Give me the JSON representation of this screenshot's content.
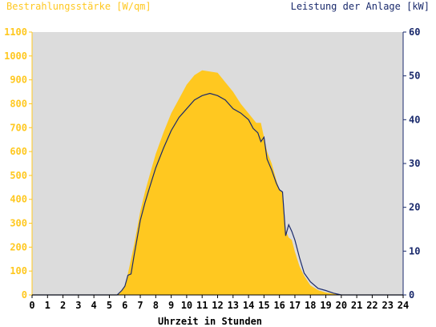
{
  "chart_data": {
    "type": "area",
    "title_left": "Bestrahlungsstärke [W/qm]",
    "title_right": "Leistung der Anlage [kW]",
    "xlabel": "Uhrzeit in Stunden",
    "x_ticks": [
      0,
      1,
      2,
      3,
      4,
      5,
      6,
      7,
      8,
      9,
      10,
      11,
      12,
      13,
      14,
      15,
      16,
      17,
      18,
      19,
      20,
      21,
      22,
      23,
      24
    ],
    "xlim": [
      0,
      24
    ],
    "y_left": {
      "ticks": [
        0,
        100,
        200,
        300,
        400,
        500,
        600,
        700,
        800,
        900,
        1000,
        1100
      ],
      "lim": [
        0,
        1100
      ]
    },
    "y_right": {
      "ticks": [
        0,
        10,
        20,
        30,
        40,
        50,
        60
      ],
      "lim": [
        0,
        60
      ]
    },
    "colors": {
      "irradiance": "#ffc820",
      "power": "#1a2a6c",
      "plot_bg": "#dcdcdc",
      "left_axis": "#ffc820",
      "right_axis": "#1a2a6c"
    },
    "series": [
      {
        "axis": "left",
        "x": [
          0,
          5.5,
          5.8,
          6.0,
          6.2,
          6.4,
          6.6,
          6.8,
          7.0,
          7.3,
          7.6,
          8.0,
          8.5,
          9.0,
          9.5,
          10.0,
          10.5,
          11.0,
          11.5,
          12.0,
          12.5,
          13.0,
          13.5,
          14.0,
          14.5,
          14.8,
          15.0,
          15.2,
          15.5,
          15.8,
          16.0,
          16.2,
          16.4,
          16.6,
          16.8,
          17.0,
          17.3,
          17.6,
          18.0,
          18.5,
          19.0,
          19.5,
          20.0,
          24
        ],
        "values": [
          0,
          0,
          20,
          40,
          90,
          150,
          210,
          280,
          350,
          430,
          500,
          590,
          680,
          760,
          820,
          880,
          920,
          940,
          935,
          930,
          890,
          850,
          800,
          760,
          720,
          720,
          660,
          600,
          550,
          480,
          440,
          430,
          270,
          240,
          230,
          180,
          120,
          80,
          40,
          20,
          10,
          5,
          0,
          0
        ]
      },
      {
        "axis": "right",
        "x": [
          0,
          5.5,
          5.8,
          6.0,
          6.2,
          6.4,
          6.6,
          6.8,
          7.0,
          7.3,
          7.6,
          8.0,
          8.5,
          9.0,
          9.5,
          10.0,
          10.5,
          11.0,
          11.5,
          12.0,
          12.5,
          13.0,
          13.5,
          14.0,
          14.3,
          14.6,
          14.8,
          15.0,
          15.2,
          15.5,
          15.8,
          16.0,
          16.2,
          16.4,
          16.6,
          16.8,
          17.0,
          17.3,
          17.6,
          18.0,
          18.5,
          19.0,
          19.5,
          20.0,
          24
        ],
        "values": [
          0,
          0,
          1.0,
          2.0,
          4.5,
          4.8,
          9.0,
          13.0,
          17.0,
          21.0,
          24.5,
          29.0,
          33.5,
          37.5,
          40.5,
          42.5,
          44.5,
          45.5,
          46.0,
          45.5,
          44.5,
          42.5,
          41.5,
          40.0,
          38.0,
          37.0,
          35.0,
          36.0,
          31.0,
          28.5,
          25.5,
          24.0,
          23.5,
          13.5,
          16.0,
          14.5,
          12.5,
          8.5,
          5.0,
          3.0,
          1.5,
          1.0,
          0.4,
          0,
          0
        ]
      }
    ]
  }
}
